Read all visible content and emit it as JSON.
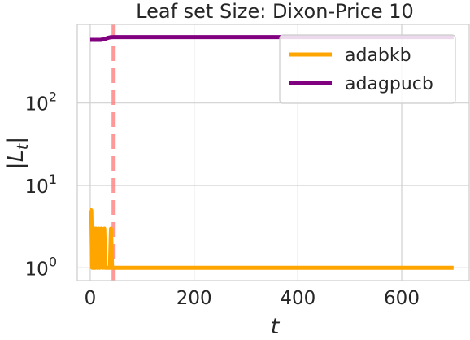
{
  "chart_data": {
    "type": "line",
    "title": "Leaf set Size: Dixon-Price 10",
    "xlabel": "t",
    "ylabel": "|L_t|",
    "xlim": [
      -25,
      730
    ],
    "ylim": [
      0.7,
      900
    ],
    "yscale": "log",
    "xticks": [
      0,
      200,
      400,
      600
    ],
    "yticks": [
      {
        "value": 1,
        "base": "10",
        "exp": "0"
      },
      {
        "value": 10,
        "base": "10",
        "exp": "1"
      },
      {
        "value": 100,
        "base": "10",
        "exp": "2"
      }
    ],
    "grid": true,
    "legend": "top-right",
    "series": [
      {
        "name": "adabkb",
        "color": "#FFA500",
        "x": [
          0,
          2,
          4,
          5,
          7,
          9,
          10,
          11,
          14,
          16,
          18,
          21,
          24,
          27,
          29,
          32,
          36,
          38,
          40,
          42,
          45,
          50,
          100,
          200,
          300,
          400,
          500,
          600,
          700
        ],
        "y": [
          5,
          5,
          1,
          3,
          1,
          3,
          1,
          3,
          1,
          3,
          1,
          3,
          1,
          3,
          1,
          1,
          1,
          1,
          3,
          1,
          1,
          1,
          1,
          1,
          1,
          1,
          1,
          1,
          1
        ]
      },
      {
        "name": "adagpucb",
        "color": "#800080",
        "x": [
          0,
          10,
          20,
          25,
          30,
          35,
          40,
          45,
          60,
          100,
          200,
          300,
          400,
          500,
          600,
          700
        ],
        "y": [
          585,
          585,
          585,
          592,
          605,
          620,
          630,
          632,
          632,
          632,
          632,
          632,
          632,
          632,
          632,
          632
        ]
      }
    ],
    "annotations": [
      {
        "type": "vline",
        "x": 45,
        "color": "#FF7F7F",
        "style": "dashed"
      }
    ]
  }
}
